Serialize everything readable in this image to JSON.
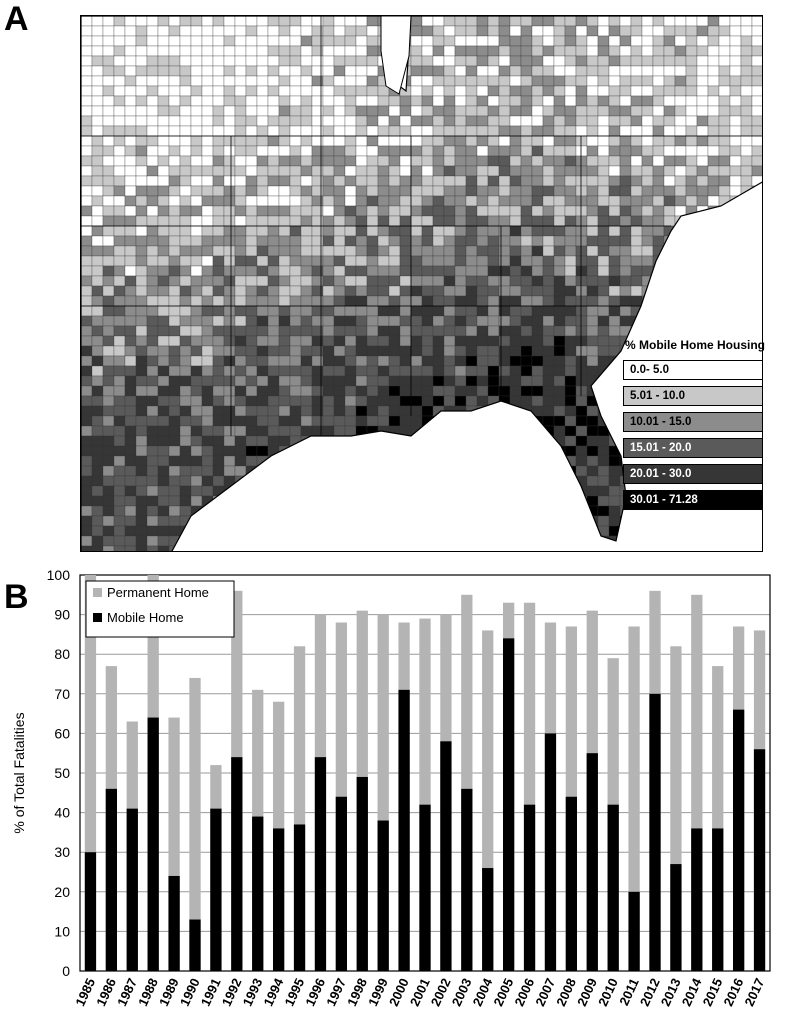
{
  "panel_a": {
    "letter": "A",
    "legend": {
      "title": "% Mobile Home Housing",
      "classes": [
        {
          "label": "0.0- 5.0",
          "color": "#ffffff"
        },
        {
          "label": "5.01 - 10.0",
          "color": "#c8c8c8"
        },
        {
          "label": "10.01 - 15.0",
          "color": "#8c8c8c"
        },
        {
          "label": "15.01 - 20.0",
          "color": "#5a5a5a"
        },
        {
          "label": "20.01 - 30.0",
          "color": "#363636"
        },
        {
          "label": "30.01 - 71.28",
          "color": "#000000"
        }
      ]
    }
  },
  "panel_b": {
    "letter": "B"
  },
  "chart_data": {
    "type": "bar",
    "title": "",
    "xlabel": "",
    "ylabel": "% of Total Fatalities",
    "ylim": [
      0,
      100
    ],
    "yticks": [
      0,
      10,
      20,
      30,
      40,
      50,
      60,
      70,
      80,
      90,
      100
    ],
    "grid": true,
    "legend_position": "top-left",
    "categories": [
      "1985",
      "1986",
      "1987",
      "1988",
      "1989",
      "1990",
      "1991",
      "1992",
      "1993",
      "1994",
      "1995",
      "1996",
      "1997",
      "1998",
      "1999",
      "2000",
      "2001",
      "2002",
      "2003",
      "2004",
      "2005",
      "2006",
      "2007",
      "2008",
      "2009",
      "2010",
      "2011",
      "2012",
      "2013",
      "2014",
      "2015",
      "2016",
      "2017"
    ],
    "series": [
      {
        "name": "Permanent Home",
        "color": "#b4b4b4",
        "values": [
          100,
          77,
          63,
          100,
          64,
          74,
          52,
          96,
          71,
          68,
          82,
          90,
          88,
          91,
          90,
          88,
          89,
          90,
          95,
          86,
          93,
          93,
          88,
          87,
          91,
          79,
          87,
          96,
          82,
          95,
          77,
          87,
          86
        ]
      },
      {
        "name": "Mobile Home",
        "color": "#000000",
        "values": [
          30,
          46,
          41,
          64,
          24,
          13,
          41,
          54,
          39,
          36,
          37,
          54,
          44,
          49,
          38,
          71,
          42,
          58,
          46,
          26,
          84,
          42,
          60,
          44,
          55,
          42,
          20,
          70,
          27,
          36,
          36,
          66,
          56
        ]
      }
    ]
  }
}
